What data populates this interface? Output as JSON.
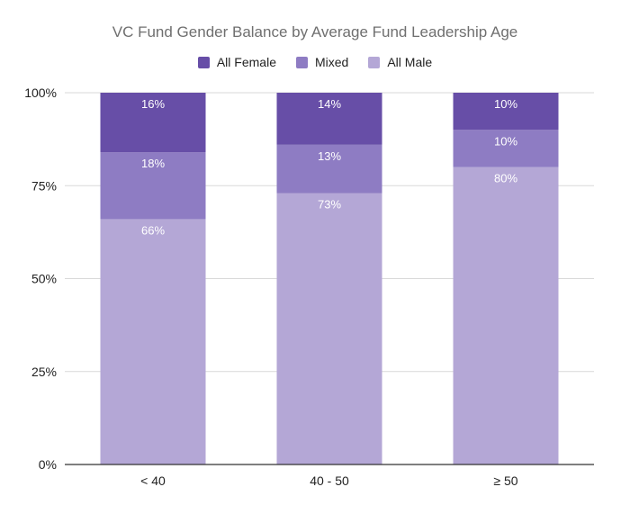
{
  "chart_data": {
    "type": "bar",
    "stacked": true,
    "title": "VC Fund Gender Balance by Average Fund Leadership Age",
    "xlabel": "",
    "ylabel": "",
    "categories": [
      "< 40",
      "40 - 50",
      "≥ 50"
    ],
    "series": [
      {
        "name": "All Female",
        "color": "#674ea7",
        "values": [
          16,
          14,
          10
        ],
        "labels": [
          "16%",
          "14%",
          "10%"
        ]
      },
      {
        "name": "Mixed",
        "color": "#8e7cc3",
        "values": [
          18,
          13,
          10
        ],
        "labels": [
          "18%",
          "13%",
          "10%"
        ]
      },
      {
        "name": "All Male",
        "color": "#b4a7d6",
        "values": [
          66,
          73,
          80
        ],
        "labels": [
          "66%",
          "73%",
          "80%"
        ]
      }
    ],
    "stack_order": [
      "All Male",
      "Mixed",
      "All Female"
    ],
    "ylim": [
      0,
      100
    ],
    "yticks": [
      0,
      25,
      50,
      75,
      100
    ],
    "ytick_labels": [
      "0%",
      "25%",
      "50%",
      "75%",
      "100%"
    ],
    "grid": true,
    "legend_position": "top-center"
  }
}
